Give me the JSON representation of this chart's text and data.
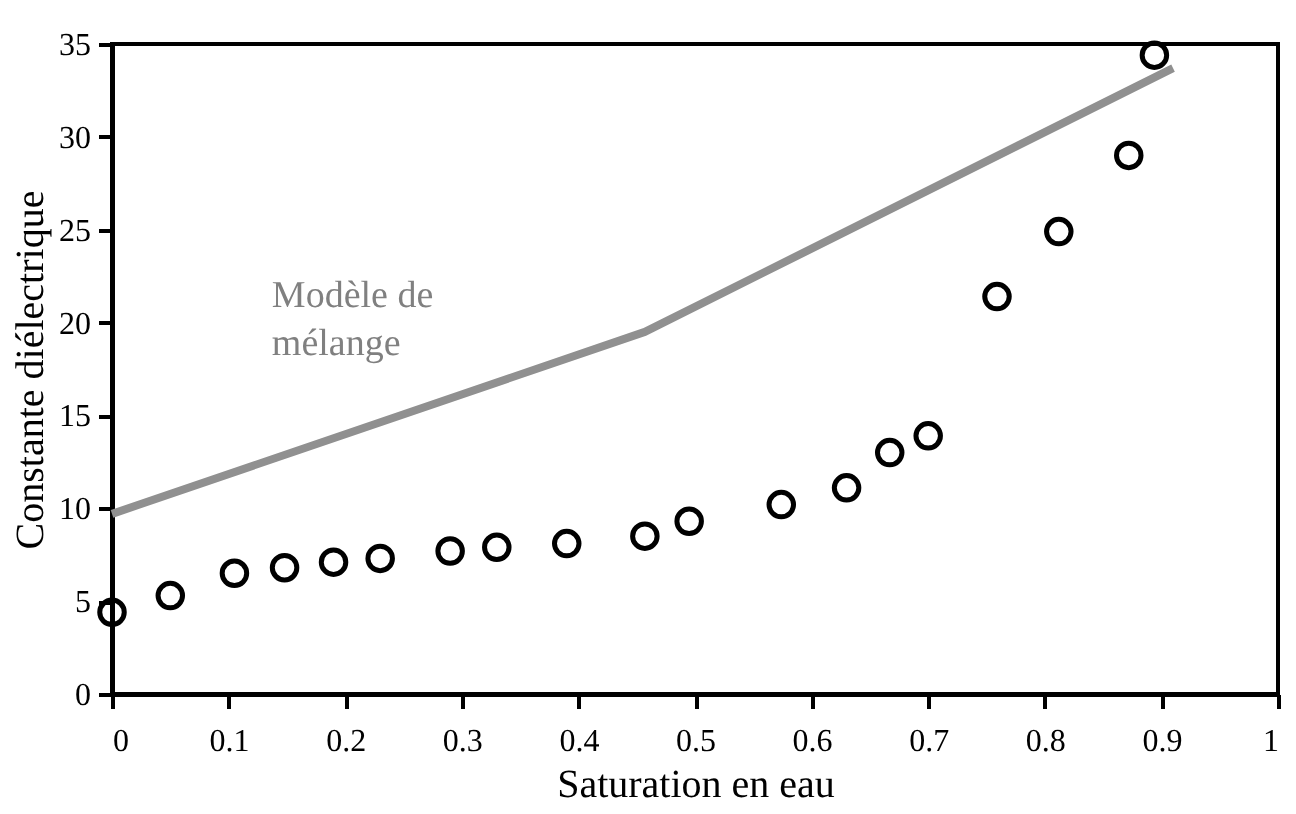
{
  "chart_data": {
    "type": "scatter",
    "xlabel": "Saturation en eau",
    "ylabel": "Constante diélectrique",
    "xlim": [
      0,
      1
    ],
    "xticks": [
      0,
      0.1,
      0.2,
      0.3,
      0.4,
      0.5,
      0.6,
      0.7,
      0.8,
      0.9,
      1
    ],
    "ylim": [
      0,
      35
    ],
    "yticks": [
      0,
      5,
      10,
      15,
      20,
      25,
      30,
      35
    ],
    "grid": false,
    "legend": false,
    "series": [
      {
        "color": "#000000",
        "marker": "circle",
        "x": [
          0,
          0.05,
          0.105,
          0.148,
          0.19,
          0.23,
          0.29,
          0.33,
          0.39,
          0.457,
          0.495,
          0.574,
          0.63,
          0.667,
          0.7,
          0.759,
          0.812,
          0.872,
          0.894
        ],
        "values": [
          4.4,
          5.3,
          6.5,
          6.8,
          7.1,
          7.3,
          7.7,
          7.9,
          8.1,
          8.5,
          9.3,
          10.2,
          11.1,
          13.0,
          13.9,
          21.4,
          24.9,
          29.0,
          34.4
        ]
      },
      {
        "type": "line",
        "name": "Modèle de mélange",
        "color": "#909090",
        "x": [
          0,
          0.457,
          0.91
        ],
        "values": [
          9.7,
          19.5,
          33.7
        ]
      }
    ]
  }
}
